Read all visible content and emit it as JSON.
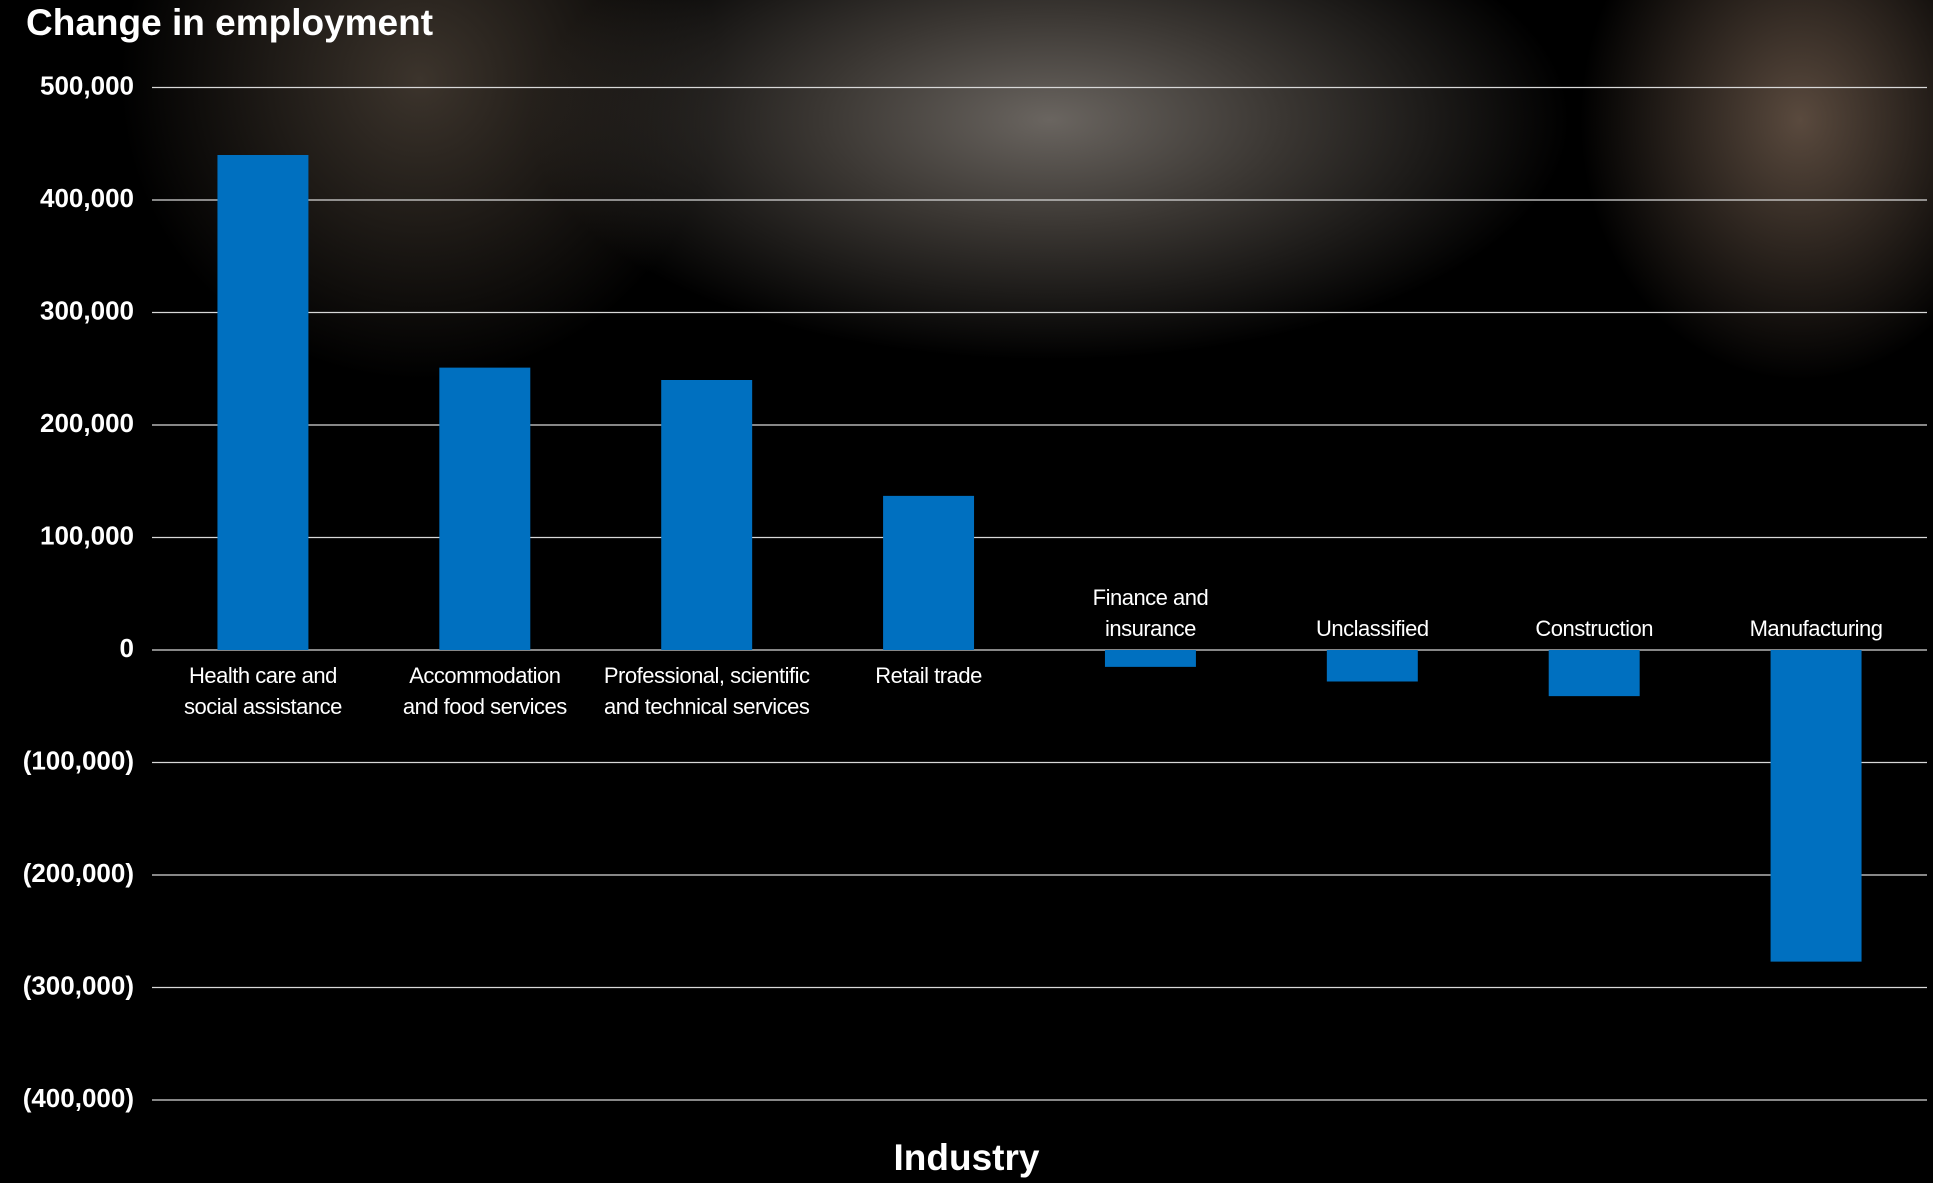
{
  "chart_data": {
    "type": "bar",
    "title": "Change in employment",
    "x_label": "Industry",
    "categories": [
      "Health care and\nsocial assistance",
      "Accommodation\nand food services",
      "Professional, scientific\nand technical services",
      "Retail trade",
      "Finance and\ninsurance",
      "Unclassified",
      "Construction",
      "Manufacturing"
    ],
    "values": [
      440000,
      251000,
      240000,
      137000,
      -15000,
      -28000,
      -41000,
      -277000
    ],
    "color": "#0070c0",
    "ylim": [
      -400000,
      500000
    ],
    "yticks": [
      {
        "value": -400000,
        "label": "(400,000)"
      },
      {
        "value": -300000,
        "label": "(300,000)"
      },
      {
        "value": -200000,
        "label": "(200,000)"
      },
      {
        "value": -100000,
        "label": "(100,000)"
      },
      0,
      {
        "value": 100000,
        "label": "100,000"
      },
      {
        "value": 200000,
        "label": "200,000"
      },
      {
        "value": 300000,
        "label": "300,000"
      },
      {
        "value": 400000,
        "label": "400,000"
      },
      {
        "value": 500000,
        "label": "500,000"
      }
    ],
    "grid": true
  }
}
